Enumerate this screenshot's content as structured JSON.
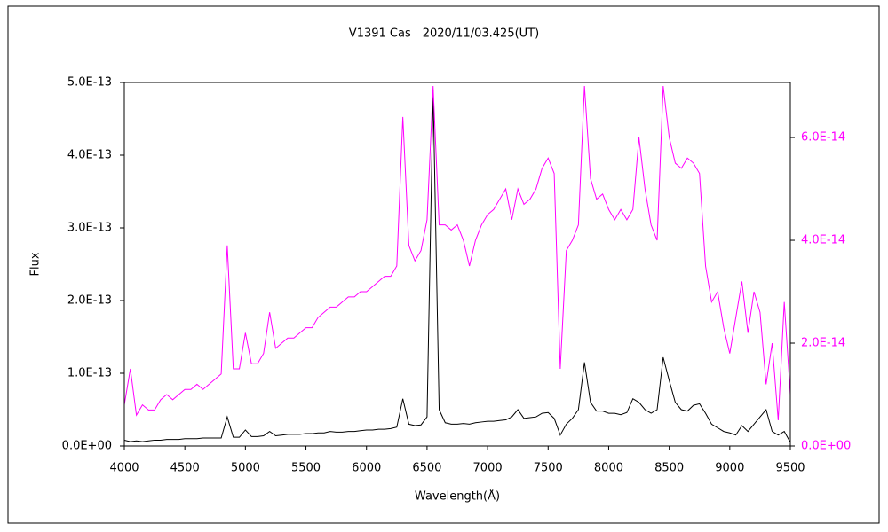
{
  "chart_data": {
    "type": "line",
    "title": "V1391 Cas　2020/11/03.425(UT)",
    "xlabel": "Wavelength(Å)",
    "ylabel": "Flux",
    "xlim": [
      4000,
      9500
    ],
    "xticks": [
      4000,
      4500,
      5000,
      5500,
      6000,
      6500,
      7000,
      7500,
      8000,
      8500,
      9000,
      9500
    ],
    "ylim": [
      0,
      5e-13
    ],
    "yticks": [
      {
        "value": 0,
        "label": "0.0E+00"
      },
      {
        "value": 1e-13,
        "label": "1.0E-13"
      },
      {
        "value": 2e-13,
        "label": "2.0E-13"
      },
      {
        "value": 3e-13,
        "label": "3.0E-13"
      },
      {
        "value": 4e-13,
        "label": "4.0E-13"
      },
      {
        "value": 5e-13,
        "label": "5.0E-13"
      }
    ],
    "y2lim": [
      0,
      7.07e-14
    ],
    "y2ticks": [
      {
        "value": 0,
        "label": "0.0E+00"
      },
      {
        "value": 2e-14,
        "label": "2.0E-14"
      },
      {
        "value": 4e-14,
        "label": "4.0E-14"
      },
      {
        "value": 6e-14,
        "label": "6.0E-14"
      }
    ],
    "grid": false,
    "x": [
      4000,
      4050,
      4100,
      4150,
      4200,
      4250,
      4300,
      4350,
      4400,
      4450,
      4500,
      4550,
      4600,
      4650,
      4700,
      4750,
      4800,
      4850,
      4900,
      4950,
      5000,
      5050,
      5100,
      5150,
      5200,
      5250,
      5300,
      5350,
      5400,
      5450,
      5500,
      5550,
      5600,
      5650,
      5700,
      5750,
      5800,
      5850,
      5900,
      5950,
      6000,
      6050,
      6100,
      6150,
      6200,
      6250,
      6300,
      6350,
      6400,
      6450,
      6500,
      6550,
      6600,
      6650,
      6700,
      6750,
      6800,
      6850,
      6900,
      6950,
      7000,
      7050,
      7100,
      7150,
      7200,
      7250,
      7300,
      7350,
      7400,
      7450,
      7500,
      7550,
      7600,
      7650,
      7700,
      7750,
      7800,
      7850,
      7900,
      7950,
      8000,
      8050,
      8100,
      8150,
      8200,
      8250,
      8300,
      8350,
      8400,
      8450,
      8500,
      8550,
      8600,
      8650,
      8700,
      8750,
      8800,
      8850,
      8900,
      8950,
      9000,
      9050,
      9100,
      9150,
      9200,
      9250,
      9300,
      9350,
      9400,
      9450,
      9500
    ],
    "series": [
      {
        "color": "#000000",
        "values": [
          8e-15,
          6e-15,
          7e-15,
          6e-15,
          7e-15,
          8e-15,
          8e-15,
          9e-15,
          9e-15,
          9e-15,
          1e-14,
          1e-14,
          1e-14,
          1.1e-14,
          1.1e-14,
          1.1e-14,
          1.1e-14,
          4e-14,
          1.2e-14,
          1.2e-14,
          2.2e-14,
          1.3e-14,
          1.3e-14,
          1.4e-14,
          2e-14,
          1.4e-14,
          1.5e-14,
          1.6e-14,
          1.6e-14,
          1.6e-14,
          1.7e-14,
          1.7e-14,
          1.8e-14,
          1.8e-14,
          2e-14,
          1.9e-14,
          1.9e-14,
          2e-14,
          2e-14,
          2.1e-14,
          2.2e-14,
          2.2e-14,
          2.3e-14,
          2.3e-14,
          2.4e-14,
          2.6e-14,
          6.5e-14,
          3e-14,
          2.8e-14,
          2.9e-14,
          4e-14,
          4.9e-13,
          5e-14,
          3.2e-14,
          3e-14,
          3e-14,
          3.1e-14,
          3e-14,
          3.2e-14,
          3.3e-14,
          3.4e-14,
          3.4e-14,
          3.5e-14,
          3.6e-14,
          4e-14,
          5e-14,
          3.8e-14,
          3.9e-14,
          4e-14,
          4.5e-14,
          4.6e-14,
          3.8e-14,
          1.5e-14,
          3e-14,
          3.8e-14,
          5e-14,
          1.15e-13,
          6e-14,
          4.8e-14,
          4.8e-14,
          4.5e-14,
          4.5e-14,
          4.3e-14,
          4.6e-14,
          6.5e-14,
          6e-14,
          5e-14,
          4.5e-14,
          5e-14,
          1.22e-13,
          9e-14,
          6e-14,
          5e-14,
          4.8e-14,
          5.6e-14,
          5.8e-14,
          4.5e-14,
          3e-14,
          2.5e-14,
          2e-14,
          1.8e-14,
          1.5e-14,
          2.8e-14,
          2e-14,
          3e-14,
          4e-14,
          5e-14,
          2e-14,
          1.5e-14,
          2e-14,
          5e-15
        ]
      },
      {
        "color": "#ff00ff",
        "axis": "y2",
        "values": [
          8e-15,
          1.5e-14,
          6e-15,
          8e-15,
          7e-15,
          7e-15,
          9e-15,
          1e-14,
          9e-15,
          1e-14,
          1.1e-14,
          1.1e-14,
          1.2e-14,
          1.1e-14,
          1.2e-14,
          1.3e-14,
          1.4e-14,
          3.9e-14,
          1.5e-14,
          1.5e-14,
          2.2e-14,
          1.6e-14,
          1.6e-14,
          1.8e-14,
          2.6e-14,
          1.9e-14,
          2e-14,
          2.1e-14,
          2.1e-14,
          2.2e-14,
          2.3e-14,
          2.3e-14,
          2.5e-14,
          2.6e-14,
          2.7e-14,
          2.7e-14,
          2.8e-14,
          2.9e-14,
          2.9e-14,
          3e-14,
          3e-14,
          3.1e-14,
          3.2e-14,
          3.3e-14,
          3.3e-14,
          3.5e-14,
          6.4e-14,
          3.9e-14,
          3.6e-14,
          3.8e-14,
          4.4e-14,
          7e-14,
          4.3e-14,
          4.3e-14,
          4.2e-14,
          4.3e-14,
          4e-14,
          3.5e-14,
          4e-14,
          4.3e-14,
          4.5e-14,
          4.6e-14,
          4.8e-14,
          5e-14,
          4.4e-14,
          5e-14,
          4.7e-14,
          4.8e-14,
          5e-14,
          5.4e-14,
          5.6e-14,
          5.3e-14,
          1.5e-14,
          3.8e-14,
          4e-14,
          4.3e-14,
          7e-14,
          5.2e-14,
          4.8e-14,
          4.9e-14,
          4.6e-14,
          4.4e-14,
          4.6e-14,
          4.4e-14,
          4.6e-14,
          6e-14,
          5e-14,
          4.3e-14,
          4e-14,
          7e-14,
          6e-14,
          5.5e-14,
          5.4e-14,
          5.6e-14,
          5.5e-14,
          5.3e-14,
          3.5e-14,
          2.8e-14,
          3e-14,
          2.3e-14,
          1.8e-14,
          2.5e-14,
          3.2e-14,
          2.2e-14,
          3e-14,
          2.6e-14,
          1.2e-14,
          2e-14,
          5e-15,
          2.8e-14,
          1e-14
        ]
      }
    ]
  }
}
